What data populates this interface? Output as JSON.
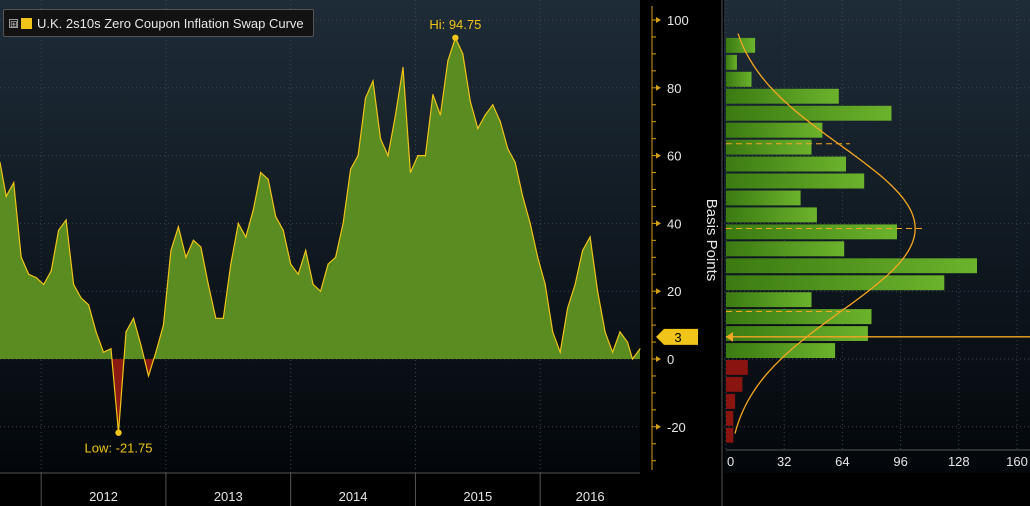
{
  "colors": {
    "background": "#000000",
    "plot_bg_top": "#1e2c38",
    "plot_bg_bottom": "#03070b",
    "area_positive": "#5a8c22",
    "area_negative": "#8a1a12",
    "line": "#f0c419",
    "axis": "#d4a017",
    "grid": "#3a4652",
    "text": "#e6e6e6",
    "hist_positive": "#4e9a1e",
    "hist_negative": "#8a1410",
    "curve": "#f5a623"
  },
  "legend": {
    "expander": "⊞",
    "label": "U.K. 2s10s Zero Coupon Inflation Swap Curve"
  },
  "chart_data": [
    {
      "type": "area",
      "series": [
        {
          "name": "U.K. 2s10s Zero Coupon Inflation Swap Curve"
        }
      ],
      "x": [
        2011.67,
        2011.72,
        2011.78,
        2011.84,
        2011.9,
        2011.96,
        2012.02,
        2012.08,
        2012.14,
        2012.2,
        2012.26,
        2012.32,
        2012.38,
        2012.44,
        2012.5,
        2012.56,
        2012.62,
        2012.68,
        2012.74,
        2012.8,
        2012.86,
        2012.92,
        2012.98,
        2013.04,
        2013.1,
        2013.16,
        2013.22,
        2013.28,
        2013.34,
        2013.4,
        2013.46,
        2013.52,
        2013.58,
        2013.64,
        2013.7,
        2013.76,
        2013.82,
        2013.88,
        2013.94,
        2014.0,
        2014.06,
        2014.12,
        2014.18,
        2014.24,
        2014.3,
        2014.36,
        2014.42,
        2014.48,
        2014.54,
        2014.6,
        2014.66,
        2014.72,
        2014.78,
        2014.84,
        2014.9,
        2014.96,
        2015.02,
        2015.08,
        2015.14,
        2015.2,
        2015.26,
        2015.32,
        2015.38,
        2015.44,
        2015.5,
        2015.56,
        2015.62,
        2015.68,
        2015.74,
        2015.8,
        2015.86,
        2015.92,
        2015.98,
        2016.04,
        2016.1,
        2016.16,
        2016.22,
        2016.28,
        2016.34,
        2016.4,
        2016.46,
        2016.52,
        2016.58,
        2016.64,
        2016.7,
        2016.74,
        2016.8
      ],
      "y": [
        58,
        48,
        52,
        30,
        25,
        24,
        22,
        26,
        38,
        41,
        22,
        18,
        16,
        8,
        2,
        3,
        -21.75,
        8,
        12,
        4,
        -5,
        2,
        10,
        32,
        39,
        30,
        35,
        33,
        22,
        12,
        12,
        28,
        40,
        36,
        44,
        55,
        53,
        42,
        38,
        28,
        25,
        32,
        22,
        20,
        28,
        30,
        40,
        56,
        60,
        77,
        82,
        65,
        60,
        72,
        86,
        55,
        60,
        60,
        78,
        72,
        88,
        94.75,
        90,
        76,
        68,
        72,
        75,
        70,
        62,
        58,
        48,
        40,
        30,
        22,
        8,
        2,
        15,
        22,
        32,
        36,
        20,
        8,
        2,
        8,
        5,
        0,
        3
      ],
      "xlim": [
        2011.67,
        2016.8
      ],
      "ylim": [
        -33,
        104
      ],
      "yticks": [
        "-20",
        "0",
        "20",
        "40",
        "60",
        "80",
        "100"
      ],
      "year_labels": [
        "2012",
        "2013",
        "2014",
        "2015",
        "2016"
      ],
      "ylabel": "Basis Points",
      "high": {
        "label": "Hi: 94.75",
        "x": 2015.32,
        "y": 94.75
      },
      "low": {
        "label": "Low: -21.75",
        "x": 2012.62,
        "y": -21.75
      },
      "last_value": {
        "label": "3",
        "y": 3
      },
      "grid": true
    },
    {
      "type": "bar",
      "orientation": "horizontal",
      "bin_width": 5,
      "bin_centers": [
        92.5,
        87.5,
        82.5,
        77.5,
        72.5,
        67.5,
        62.5,
        57.5,
        52.5,
        47.5,
        42.5,
        37.5,
        32.5,
        27.5,
        22.5,
        17.5,
        12.5,
        7.5,
        2.5,
        -2.5,
        -7.5,
        -12.5,
        -17.5,
        -22.5
      ],
      "counts": [
        16,
        6,
        14,
        62,
        91,
        53,
        47,
        66,
        76,
        41,
        50,
        94,
        65,
        138,
        120,
        47,
        80,
        78,
        60,
        12,
        9,
        5,
        4,
        4
      ],
      "xlim": [
        0,
        160
      ],
      "xticks": [
        "0",
        "32",
        "64",
        "96",
        "128",
        "160"
      ],
      "fitted_curve": true,
      "dashed_levels": [
        63.5,
        38.5,
        14
      ]
    }
  ]
}
